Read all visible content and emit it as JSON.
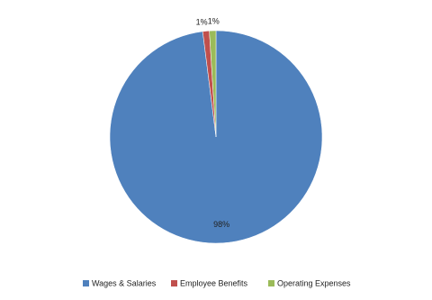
{
  "chart_data": {
    "type": "pie",
    "categories": [
      "Wages & Salaries",
      "Employee Benefits",
      "Operating Expenses"
    ],
    "values": [
      98,
      1,
      1
    ],
    "value_labels": [
      "98%",
      "1%",
      "1%"
    ],
    "colors": [
      "#4f81bd",
      "#c0504d",
      "#9bbb59"
    ],
    "legend": "bottom"
  }
}
